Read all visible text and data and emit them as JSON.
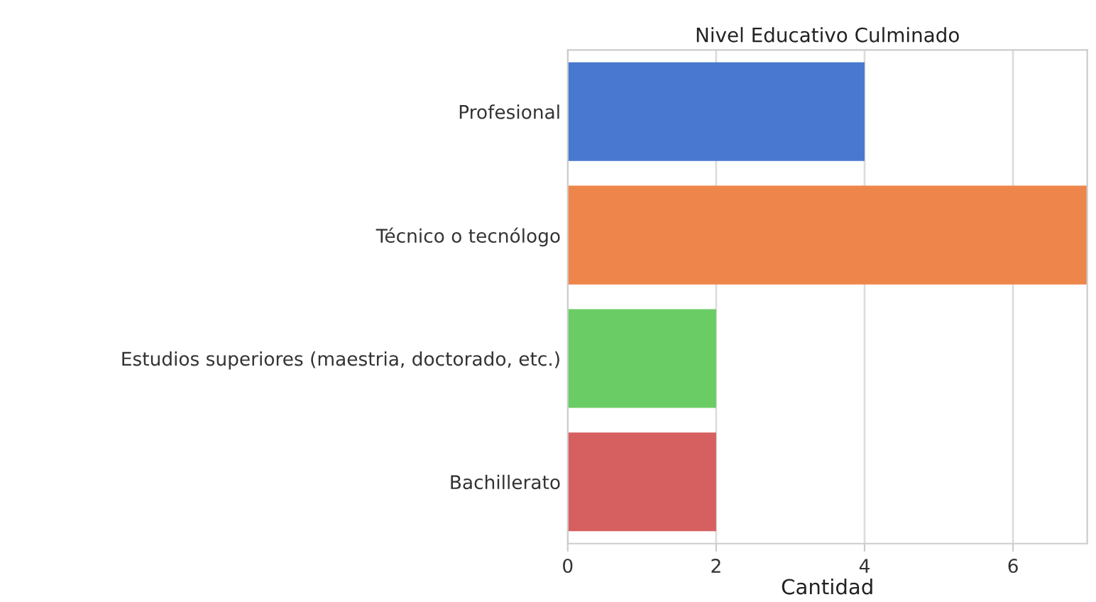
{
  "chart_data": {
    "type": "bar",
    "orientation": "horizontal",
    "title": "Nivel Educativo Culminado",
    "xlabel": "Cantidad",
    "categories": [
      "Profesional",
      "Técnico o tecnólogo",
      "Estudios superiores (maestria, doctorado, etc.)",
      "Bachillerato"
    ],
    "values": [
      4,
      7,
      2,
      2
    ],
    "colors": [
      "#4878d0",
      "#ee854a",
      "#6acc64",
      "#d65f5f"
    ],
    "xlim": [
      0,
      7
    ],
    "xticks": [
      0,
      2,
      4,
      6
    ],
    "grid": "x"
  }
}
